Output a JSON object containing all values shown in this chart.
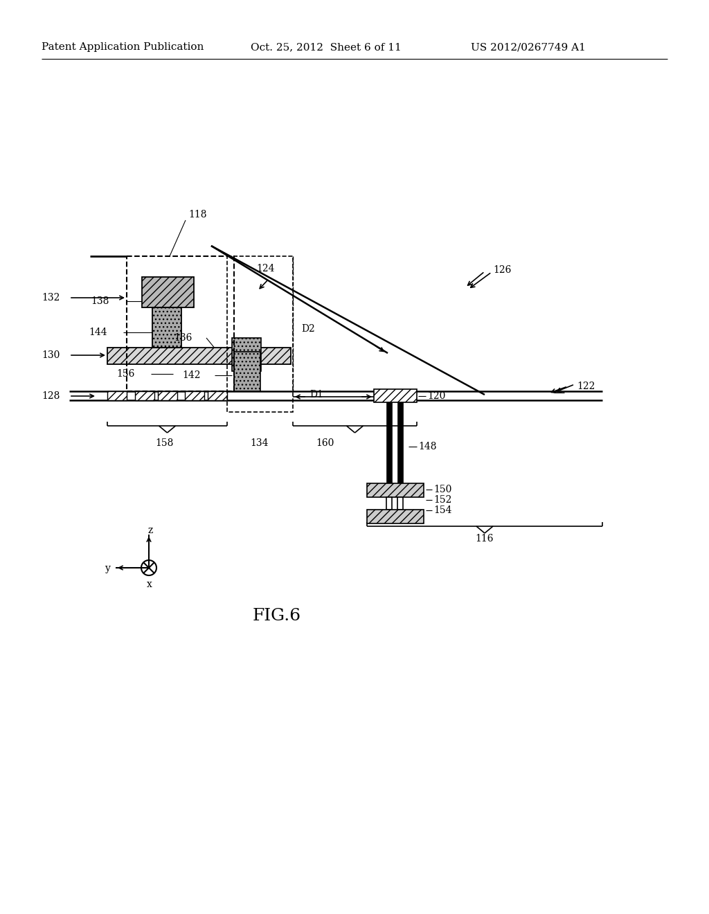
{
  "bg_color": "#ffffff",
  "title_line1": "Patent Application Publication",
  "title_line2": "Oct. 25, 2012  Sheet 6 of 11",
  "title_line3": "US 2012/0267749 A1",
  "fig_label": "FIG.6"
}
